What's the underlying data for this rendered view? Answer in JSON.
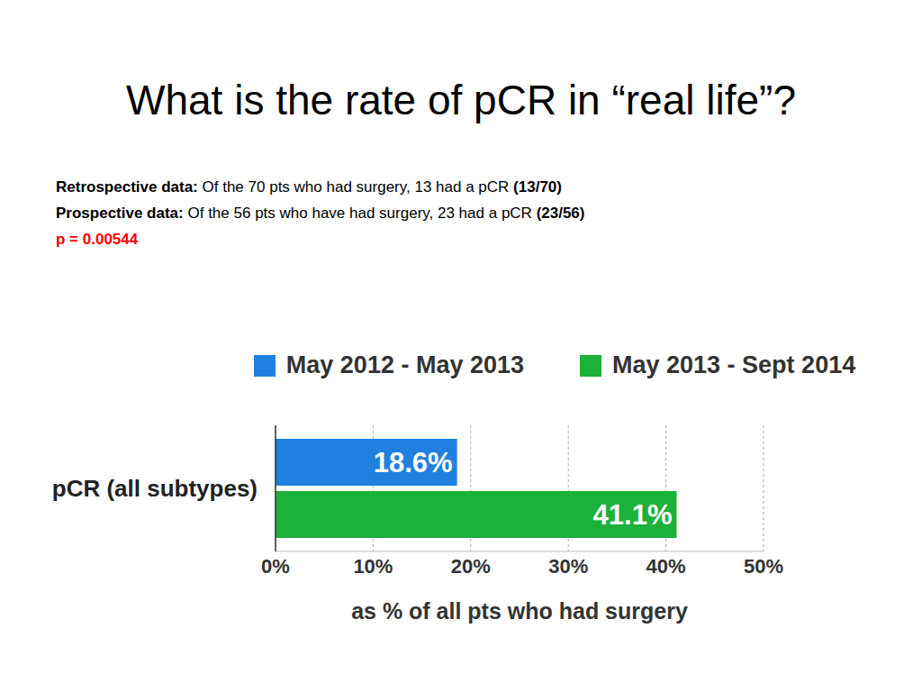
{
  "chart_data": {
    "type": "bar",
    "title": "What is the rate of pCR in “real life”?",
    "annotations": [
      {
        "label": "Retrospective data:",
        "text": "Of the 70 pts who had surgery, 13 had a pCR",
        "ratio": "(13/70)"
      },
      {
        "label": "Prospective data:",
        "text": "Of the 56 pts who have had surgery, 23 had a pCR",
        "ratio": "(23/56)"
      },
      {
        "text": "p = 0.00544",
        "color": "#ff0000"
      }
    ],
    "orientation": "horizontal",
    "categories": [
      "pCR (all subtypes)"
    ],
    "series": [
      {
        "name": "May 2012 - May 2013",
        "color": "#1f80e0",
        "values": [
          18.6
        ],
        "value_labels": [
          "18.6%"
        ]
      },
      {
        "name": "May 2013 - Sept 2014",
        "color": "#1cb13b",
        "values": [
          41.1
        ],
        "value_labels": [
          "41.1%"
        ]
      }
    ],
    "xlabel": "as % of all pts who had surgery",
    "xlim": [
      0,
      50
    ],
    "xticks": [
      {
        "value": 0,
        "label": "0%"
      },
      {
        "value": 10,
        "label": "10%"
      },
      {
        "value": 20,
        "label": "20%"
      },
      {
        "value": 30,
        "label": "30%"
      },
      {
        "value": 40,
        "label": "40%"
      },
      {
        "value": 50,
        "label": "50%"
      }
    ],
    "grid": true,
    "legend": "top",
    "data_labels": true
  }
}
